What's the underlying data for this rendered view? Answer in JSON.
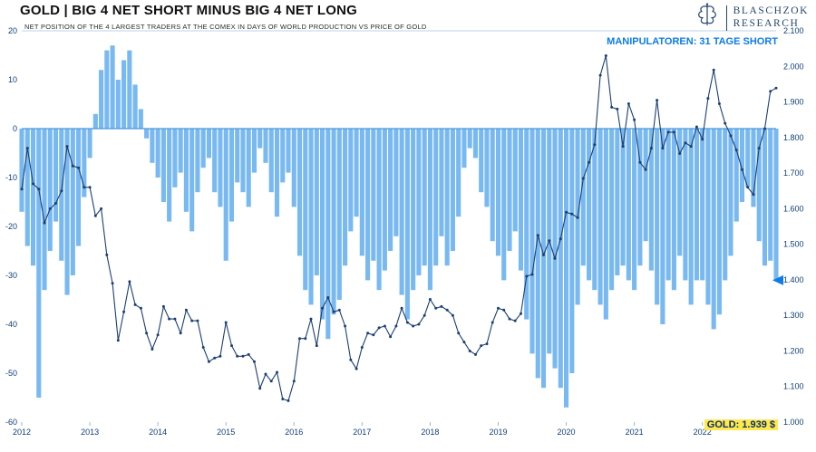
{
  "header": {
    "title": "GOLD | BIG 4 NET SHORT MINUS BIG 4 NET LONG",
    "subtitle": "NET POSITION OF THE 4 LARGEST TRADERS AT THE COMEX IN DAYS OF WORLD PRODUCTION VS PRICE OF GOLD",
    "logo": {
      "line1": "BLASCHZOK",
      "line2": "RESEARCH"
    }
  },
  "annotations": {
    "manipulators": "MANIPULATOREN: 31 TAGE SHORT",
    "gold_price": "GOLD: 1.939 $"
  },
  "colors": {
    "bar": "#79b9f1",
    "line": "#1c3f73",
    "accent_blue": "#0d7ce8",
    "axis_text": "#0f3e77",
    "zero_line": "#4a98d9",
    "top_line": "#b9d3ea",
    "tick_line": "#9bb6d2",
    "gold_label_bg": "#ffe94d"
  },
  "chart_data": {
    "type": "bar",
    "title": "GOLD | BIG 4 NET SHORT MINUS BIG 4 NET LONG",
    "subtitle": "NET POSITION OF THE 4 LARGEST TRADERS AT THE COMEX IN DAYS OF WORLD PRODUCTION VS PRICE OF GOLD",
    "x_interval": "monthly",
    "x_monthly_start": "2012-01",
    "legend": "none",
    "grid": "off",
    "series": [
      {
        "name": "Big 4 net position (days of world production)",
        "type": "bar",
        "axis": "left",
        "values": [
          -17,
          -24,
          -28,
          -55,
          -33,
          -25,
          -19,
          -27,
          -34,
          -30,
          -24,
          -14,
          -6,
          3,
          12,
          16,
          17,
          10,
          14,
          16,
          9,
          4,
          -2,
          -7,
          -10,
          -15,
          -19,
          -12,
          -9,
          -17,
          -21,
          -13,
          -8,
          -6,
          -13,
          -16,
          -27,
          -19,
          -11,
          -13,
          -16,
          -9,
          -4,
          -7,
          -13,
          -18,
          -11,
          -9,
          -16,
          -26,
          -33,
          -36,
          -30,
          -39,
          -43,
          -38,
          -35,
          -28,
          -21,
          -18,
          -26,
          -31,
          -27,
          -33,
          -29,
          -25,
          -22,
          -34,
          -39,
          -33,
          -30,
          -28,
          -33,
          -28,
          -22,
          -28,
          -25,
          -18,
          -8,
          -4,
          -6,
          -13,
          -16,
          -23,
          -26,
          -31,
          -25,
          -21,
          -29,
          -39,
          -46,
          -51,
          -53,
          -46,
          -49,
          -53,
          -57,
          -50,
          -36,
          -28,
          -31,
          -33,
          -36,
          -39,
          -33,
          -30,
          -28,
          -31,
          -33,
          -28,
          -23,
          -29,
          -36,
          -40,
          -31,
          -33,
          -26,
          -31,
          -36,
          -31,
          -31,
          -36,
          -41,
          -38,
          -31,
          -26,
          -19,
          -15,
          -12,
          -16,
          -23,
          -28,
          -27,
          -31
        ]
      },
      {
        "name": "Gold price (USD)",
        "type": "line",
        "axis": "right",
        "values": [
          1655,
          1770,
          1670,
          1655,
          1560,
          1600,
          1615,
          1650,
          1775,
          1720,
          1715,
          1660,
          1660,
          1580,
          1600,
          1470,
          1390,
          1230,
          1310,
          1395,
          1330,
          1320,
          1250,
          1205,
          1245,
          1325,
          1290,
          1290,
          1250,
          1315,
          1285,
          1285,
          1210,
          1170,
          1180,
          1185,
          1280,
          1215,
          1185,
          1185,
          1190,
          1170,
          1095,
          1135,
          1115,
          1140,
          1065,
          1060,
          1115,
          1235,
          1235,
          1290,
          1215,
          1320,
          1350,
          1310,
          1315,
          1270,
          1175,
          1150,
          1210,
          1250,
          1245,
          1265,
          1270,
          1240,
          1270,
          1320,
          1280,
          1270,
          1275,
          1300,
          1345,
          1320,
          1325,
          1315,
          1300,
          1250,
          1225,
          1200,
          1190,
          1215,
          1220,
          1280,
          1320,
          1315,
          1290,
          1285,
          1305,
          1410,
          1415,
          1525,
          1470,
          1510,
          1460,
          1515,
          1590,
          1585,
          1575,
          1685,
          1730,
          1780,
          1975,
          2030,
          1885,
          1880,
          1775,
          1895,
          1850,
          1730,
          1710,
          1770,
          1905,
          1770,
          1815,
          1815,
          1755,
          1785,
          1775,
          1830,
          1795,
          1910,
          1990,
          1895,
          1840,
          1805,
          1765,
          1710,
          1660,
          1640,
          1770,
          1825,
          1930,
          1939
        ]
      }
    ],
    "left_axis": {
      "range": [
        20,
        -60
      ],
      "ticks": [
        20,
        10,
        0,
        -10,
        -20,
        -30,
        -40,
        -50,
        -60
      ]
    },
    "right_axis": {
      "range": [
        2100,
        1000
      ],
      "ticks": [
        2100,
        2000,
        1900,
        1800,
        1700,
        1600,
        1500,
        1400,
        1300,
        1200,
        1100,
        1000
      ],
      "labels": [
        "2.100",
        "2.000",
        "1.900",
        "1.800",
        "1.700",
        "1.600",
        "1.500",
        "1.400",
        "1.300",
        "1.200",
        "1.100",
        "1.000"
      ]
    },
    "x_ticks": [
      "2012",
      "2013",
      "2014",
      "2015",
      "2016",
      "2017",
      "2018",
      "2019",
      "2020",
      "2021",
      "2022"
    ],
    "marker": {
      "days": -31
    },
    "last_values": {
      "big4_days_short": 31,
      "gold_usd": 1939
    }
  }
}
